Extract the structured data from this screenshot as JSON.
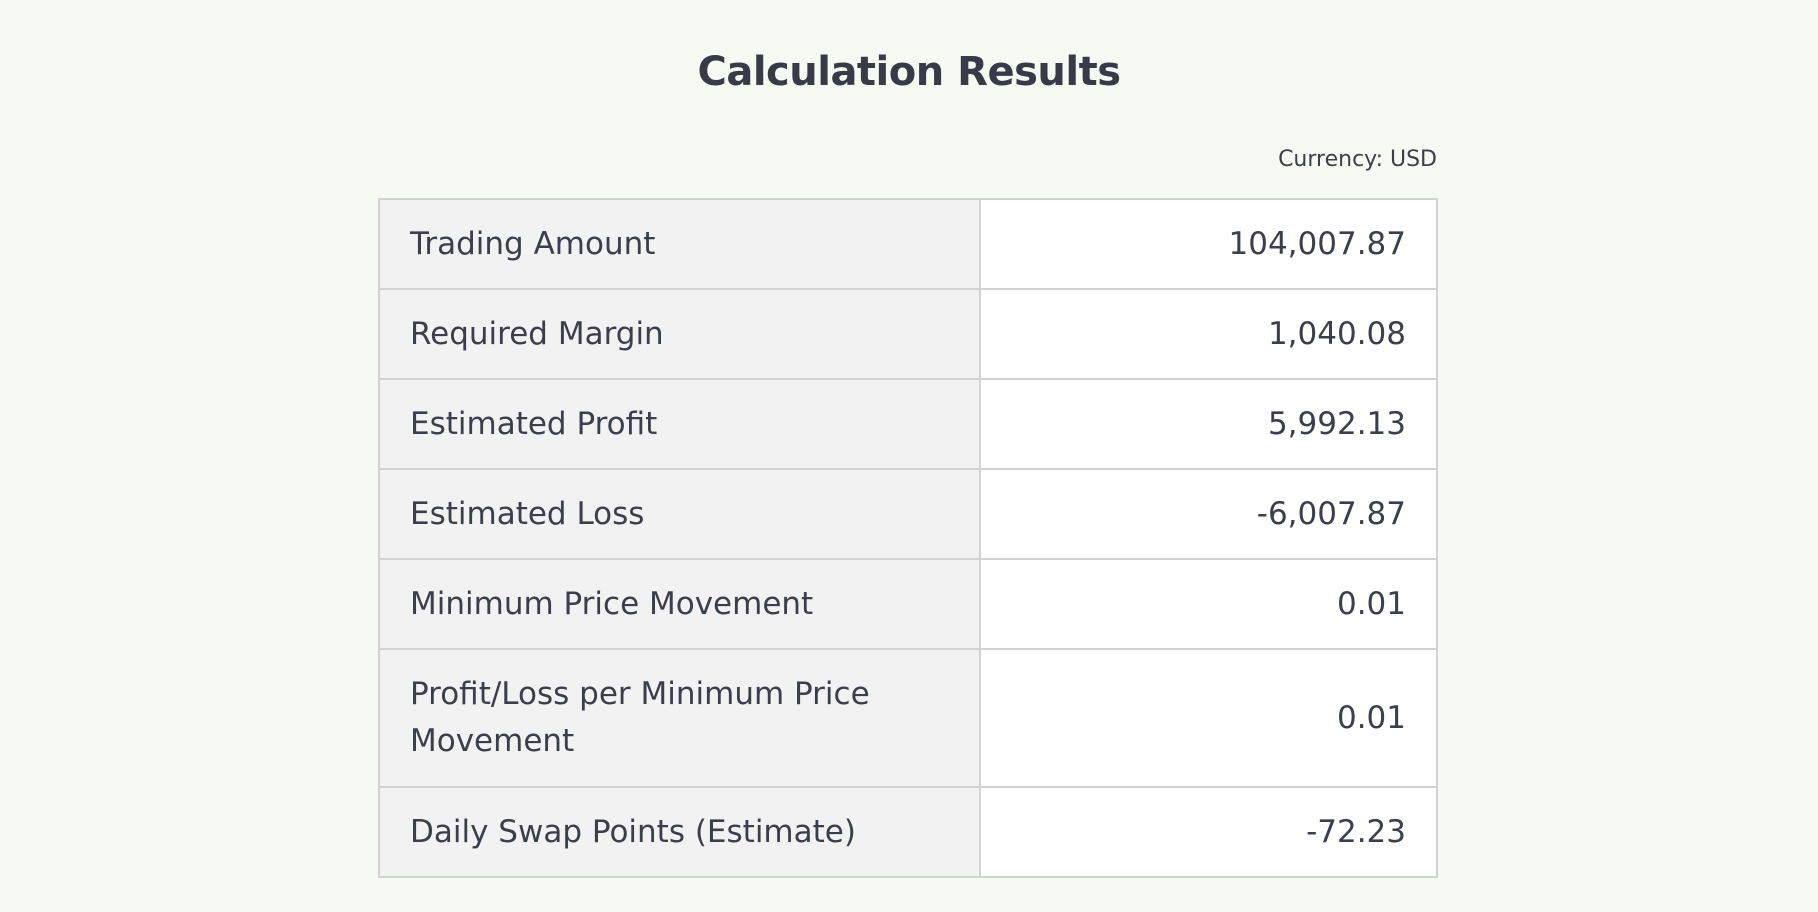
{
  "page": {
    "title": "Calculation Results",
    "currency_label": "Currency: USD"
  },
  "colors": {
    "background": "#f5fbf2",
    "label_cell": "#f2f2f2",
    "value_cell": "#ffffff",
    "border": "#d2d2d2",
    "text": "#3a3f4b"
  },
  "results": {
    "rows": [
      {
        "label": "Trading Amount",
        "value": "104,007.87"
      },
      {
        "label": "Required Margin",
        "value": "1,040.08"
      },
      {
        "label": "Estimated Profit",
        "value": "5,992.13"
      },
      {
        "label": "Estimated Loss",
        "value": "-6,007.87"
      },
      {
        "label": "Minimum Price Movement",
        "value": "0.01"
      },
      {
        "label": "Profit/Loss per Minimum Price Movement",
        "value": "0.01"
      },
      {
        "label": "Daily Swap Points (Estimate)",
        "value": "-72.23"
      }
    ]
  }
}
